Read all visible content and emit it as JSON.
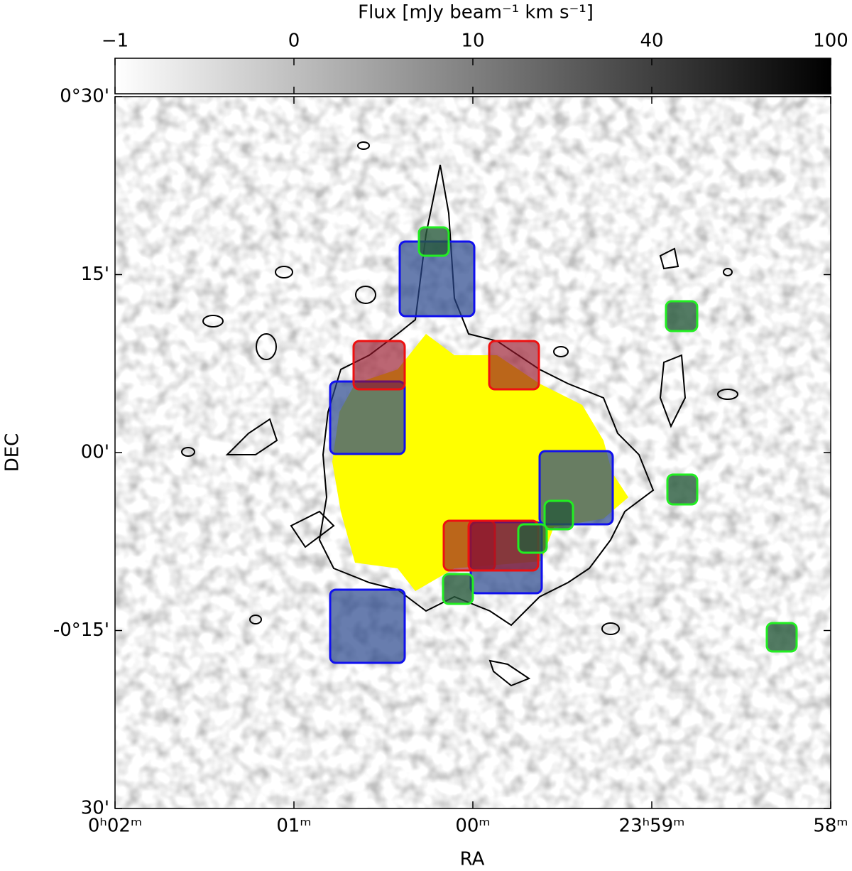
{
  "chart_data": {
    "type": "image",
    "xlabel": "RA",
    "ylabel": "DEC",
    "xlim": [
      2,
      -2
    ],
    "ylim": [
      -30,
      30
    ],
    "xticks": [
      {
        "value": 2,
        "label": "0ʰ02ᵐ"
      },
      {
        "value": 1,
        "label": "01ᵐ"
      },
      {
        "value": 0,
        "label": "00ᵐ"
      },
      {
        "value": -1,
        "label": "23ʰ59ᵐ"
      },
      {
        "value": -2,
        "label": "58ᵐ"
      }
    ],
    "yticks": [
      {
        "value": 30,
        "label": "0°30'"
      },
      {
        "value": 15,
        "label": "15'"
      },
      {
        "value": 0,
        "label": "00'"
      },
      {
        "value": -15,
        "label": "-0°15'"
      },
      {
        "value": -30,
        "label": "30'"
      }
    ],
    "colorbar": {
      "label": "Flux [mJy beam⁻¹ km s⁻¹]",
      "clim": [
        -1,
        100
      ],
      "ticks": [
        {
          "value": -1,
          "label": "−1"
        },
        0,
        10,
        40,
        100
      ]
    }
  }
}
